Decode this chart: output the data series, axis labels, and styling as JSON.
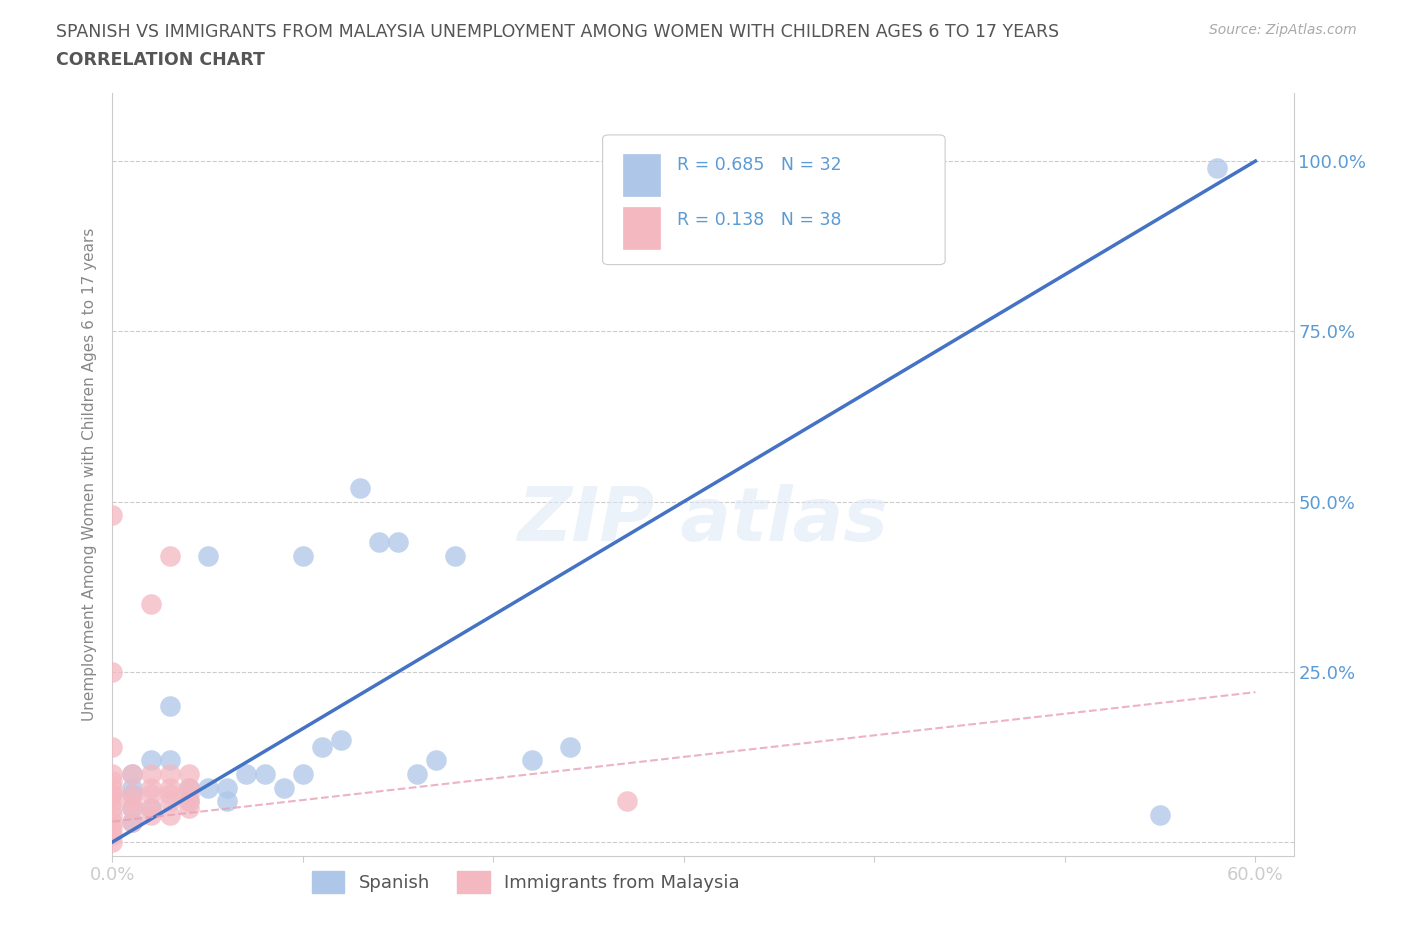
{
  "title_line1": "SPANISH VS IMMIGRANTS FROM MALAYSIA UNEMPLOYMENT AMONG WOMEN WITH CHILDREN AGES 6 TO 17 YEARS",
  "title_line2": "CORRELATION CHART",
  "source": "Source: ZipAtlas.com",
  "ylabel": "Unemployment Among Women with Children Ages 6 to 17 years",
  "xlim": [
    0.0,
    0.62
  ],
  "ylim": [
    -0.02,
    1.1
  ],
  "R_spanish": 0.685,
  "N_spanish": 32,
  "R_malaysia": 0.138,
  "N_malaysia": 38,
  "legend_color": "#5b9bd5",
  "background_color": "#ffffff",
  "grid_color": "#cccccc",
  "title_color": "#555555",
  "axis_label_color": "#888888",
  "tick_label_color": "#5b9bd5",
  "spanish_scatter_color": "#aec6e8",
  "malaysia_scatter_color": "#f4b8c1",
  "spanish_line_color": "#4472c4",
  "malaysia_line_color": "#f4b8c1",
  "spanish_points_x": [
    0.01,
    0.01,
    0.01,
    0.01,
    0.01,
    0.02,
    0.02,
    0.03,
    0.03,
    0.04,
    0.04,
    0.05,
    0.05,
    0.06,
    0.06,
    0.07,
    0.08,
    0.09,
    0.1,
    0.1,
    0.11,
    0.12,
    0.13,
    0.14,
    0.15,
    0.16,
    0.17,
    0.18,
    0.22,
    0.24,
    0.55,
    0.58
  ],
  "spanish_points_y": [
    0.03,
    0.05,
    0.07,
    0.08,
    0.1,
    0.05,
    0.12,
    0.12,
    0.2,
    0.06,
    0.08,
    0.08,
    0.42,
    0.06,
    0.08,
    0.1,
    0.1,
    0.08,
    0.1,
    0.42,
    0.14,
    0.15,
    0.52,
    0.44,
    0.44,
    0.1,
    0.12,
    0.42,
    0.12,
    0.14,
    0.04,
    0.99
  ],
  "malaysia_points_x": [
    0.0,
    0.0,
    0.0,
    0.0,
    0.0,
    0.0,
    0.0,
    0.0,
    0.0,
    0.0,
    0.0,
    0.0,
    0.0,
    0.0,
    0.0,
    0.01,
    0.01,
    0.01,
    0.01,
    0.01,
    0.02,
    0.02,
    0.02,
    0.02,
    0.02,
    0.02,
    0.03,
    0.03,
    0.03,
    0.03,
    0.03,
    0.03,
    0.04,
    0.04,
    0.04,
    0.04,
    0.04,
    0.27
  ],
  "malaysia_points_y": [
    0.0,
    0.01,
    0.02,
    0.03,
    0.04,
    0.05,
    0.06,
    0.07,
    0.07,
    0.08,
    0.09,
    0.1,
    0.14,
    0.25,
    0.48,
    0.03,
    0.05,
    0.06,
    0.07,
    0.1,
    0.04,
    0.05,
    0.07,
    0.08,
    0.1,
    0.35,
    0.04,
    0.06,
    0.07,
    0.08,
    0.1,
    0.42,
    0.05,
    0.06,
    0.07,
    0.08,
    0.1,
    0.06
  ],
  "spanish_line_x": [
    0.0,
    0.6
  ],
  "spanish_line_y": [
    0.0,
    1.0
  ],
  "malaysia_line_x": [
    0.0,
    0.6
  ],
  "malaysia_line_y": [
    0.05,
    0.15
  ]
}
